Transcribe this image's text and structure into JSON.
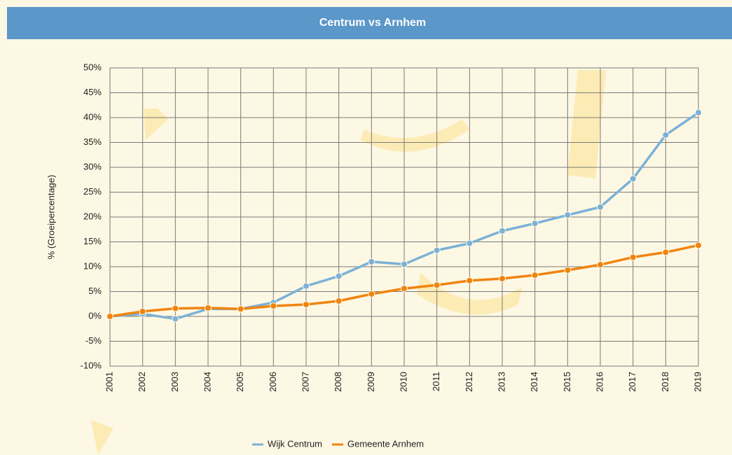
{
  "chart_data": {
    "type": "line",
    "title": "Centrum vs Arnhem",
    "y_label": "% (Groeipercentage)",
    "categories": [
      "2001",
      "2002",
      "2003",
      "2004",
      "2005",
      "2006",
      "2007",
      "2008",
      "2009",
      "2010",
      "2011",
      "2012",
      "2013",
      "2014",
      "2015",
      "2016",
      "2017",
      "2018",
      "2019"
    ],
    "series": [
      {
        "name": "Wijk Centrum",
        "color": "#7bb1d6",
        "values": [
          0,
          0.5,
          -0.5,
          1.5,
          1.5,
          2.8,
          6.1,
          8.1,
          11,
          10.5,
          13.3,
          14.7,
          17.2,
          18.7,
          20.4,
          22,
          27.7,
          36.5,
          41
        ]
      },
      {
        "name": "Gemeente Arnhem",
        "color": "#f0840f",
        "values": [
          0,
          1,
          1.6,
          1.7,
          1.5,
          2.1,
          2.4,
          3.1,
          4.5,
          5.6,
          6.3,
          7.2,
          7.6,
          8.3,
          9.3,
          10.4,
          11.9,
          12.9,
          14.3
        ]
      }
    ],
    "ylim": [
      -10,
      50
    ],
    "yticks": [
      {
        "value": -10,
        "label": "-10%"
      },
      {
        "value": -5,
        "label": "-5%"
      },
      {
        "value": 0,
        "label": "0%"
      },
      {
        "value": 5,
        "label": "5%"
      },
      {
        "value": 10,
        "label": "10%"
      },
      {
        "value": 15,
        "label": "15%"
      },
      {
        "value": 20,
        "label": "20%"
      },
      {
        "value": 25,
        "label": "25%"
      },
      {
        "value": 30,
        "label": "30%"
      },
      {
        "value": 35,
        "label": "35%"
      },
      {
        "value": 40,
        "label": "40%"
      },
      {
        "value": 45,
        "label": "45%"
      },
      {
        "value": 50,
        "label": "50%"
      }
    ],
    "grid": true,
    "legend": "bottom"
  }
}
